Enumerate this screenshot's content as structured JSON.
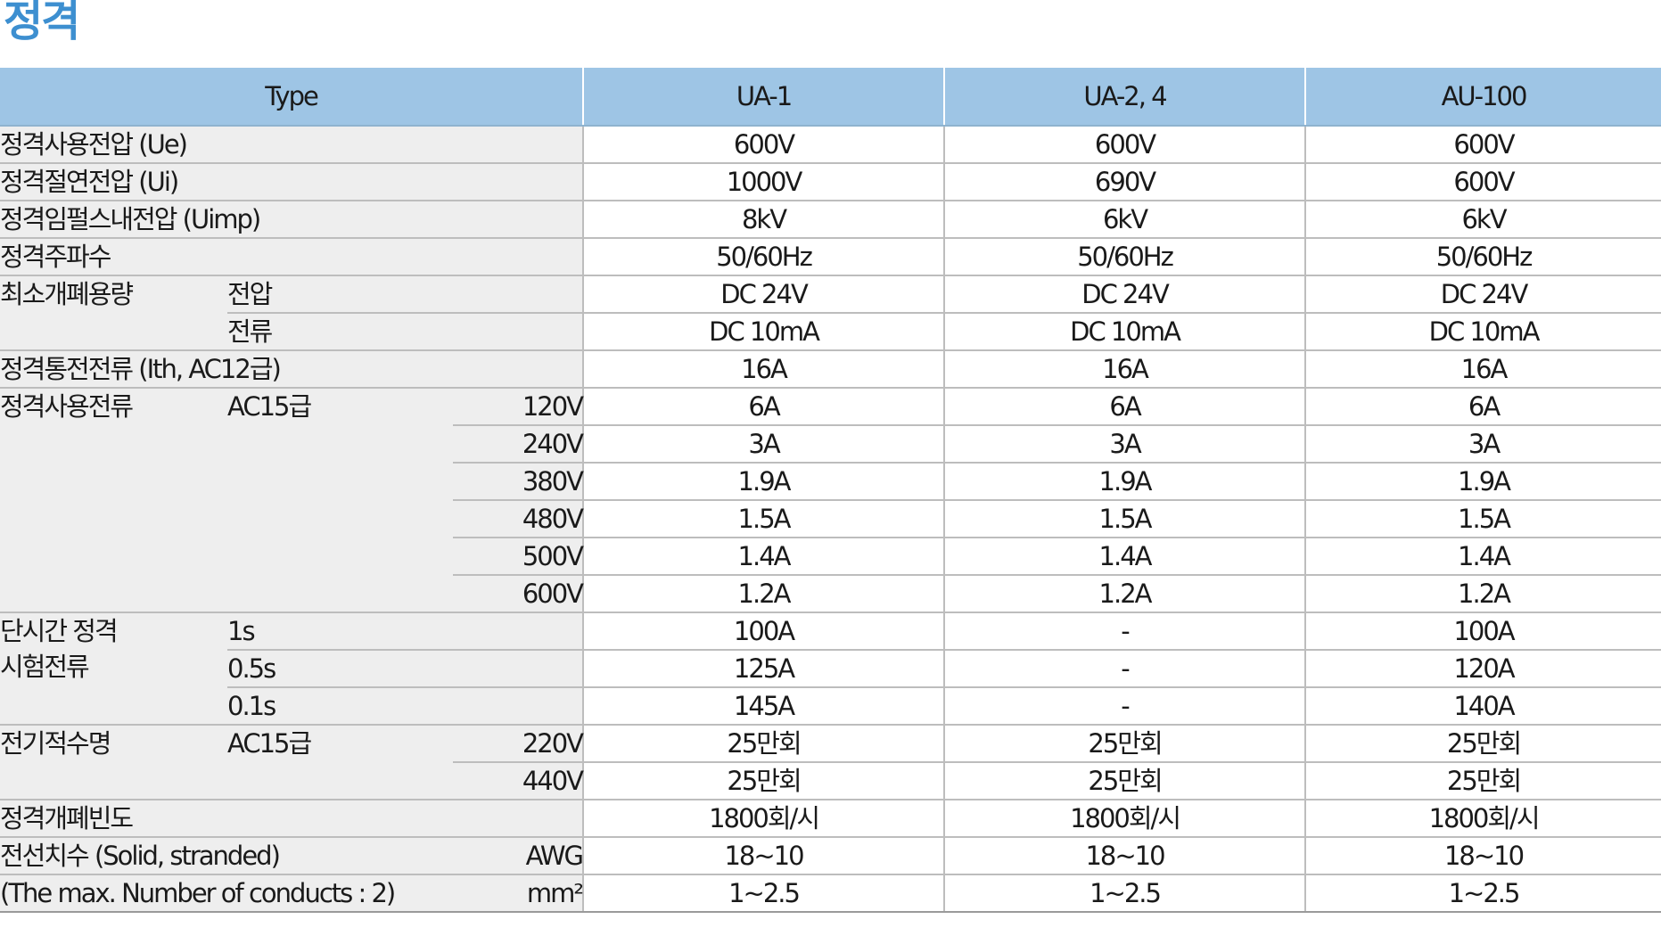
{
  "title": "정격",
  "header": {
    "type_label": "Type",
    "models": [
      "UA-1",
      "UA-2, 4",
      "AU-100"
    ]
  },
  "rows": {
    "ue": {
      "label": "정격사용전압 (Ue)",
      "values": [
        "600V",
        "600V",
        "600V"
      ]
    },
    "ui": {
      "label": "정격절연전압 (Ui)",
      "values": [
        "1000V",
        "690V",
        "600V"
      ]
    },
    "uimp": {
      "label": "정격임펄스내전압 (Uimp)",
      "values": [
        "8kV",
        "6kV",
        "6kV"
      ]
    },
    "freq": {
      "label": "정격주파수",
      "values": [
        "50/60Hz",
        "50/60Hz",
        "50/60Hz"
      ]
    },
    "min_switch": {
      "label": "최소개폐용량",
      "voltage": {
        "sub": "전압",
        "values": [
          "DC 24V",
          "DC 24V",
          "DC 24V"
        ]
      },
      "current": {
        "sub": "전류",
        "values": [
          "DC 10mA",
          "DC 10mA",
          "DC 10mA"
        ]
      }
    },
    "ith": {
      "label": "정격통전전류 (Ith, AC12급)",
      "values": [
        "16A",
        "16A",
        "16A"
      ]
    },
    "ie": {
      "label": "정격사용전류",
      "class": "AC15급",
      "rows": [
        {
          "v": "120V",
          "values": [
            "6A",
            "6A",
            "6A"
          ]
        },
        {
          "v": "240V",
          "values": [
            "3A",
            "3A",
            "3A"
          ]
        },
        {
          "v": "380V",
          "values": [
            "1.9A",
            "1.9A",
            "1.9A"
          ]
        },
        {
          "v": "480V",
          "values": [
            "1.5A",
            "1.5A",
            "1.5A"
          ]
        },
        {
          "v": "500V",
          "values": [
            "1.4A",
            "1.4A",
            "1.4A"
          ]
        },
        {
          "v": "600V",
          "values": [
            "1.2A",
            "1.2A",
            "1.2A"
          ]
        }
      ]
    },
    "short_time": {
      "label_line1": "단시간 정격",
      "label_line2": "시험전류",
      "rows": [
        {
          "t": "1s",
          "values": [
            "100A",
            "-",
            "100A"
          ]
        },
        {
          "t": "0.5s",
          "values": [
            "125A",
            "-",
            "120A"
          ]
        },
        {
          "t": "0.1s",
          "values": [
            "145A",
            "-",
            "140A"
          ]
        }
      ]
    },
    "life": {
      "label": "전기적수명",
      "class": "AC15급",
      "rows": [
        {
          "v": "220V",
          "values": [
            "25만회",
            "25만회",
            "25만회"
          ]
        },
        {
          "v": "440V",
          "values": [
            "25만회",
            "25만회",
            "25만회"
          ]
        }
      ]
    },
    "freq_op": {
      "label": "정격개폐빈도",
      "values": [
        "1800회/시",
        "1800회/시",
        "1800회/시"
      ]
    },
    "wire": {
      "label_line1": "전선치수 (Solid, stranded)",
      "label_line2": "(The max. Number of conducts : 2)",
      "rows": [
        {
          "unit": "AWG",
          "values": [
            "18~10",
            "18~10",
            "18~10"
          ]
        },
        {
          "unit": "mm²",
          "values": [
            "1~2.5",
            "1~2.5",
            "1~2.5"
          ]
        }
      ]
    }
  }
}
